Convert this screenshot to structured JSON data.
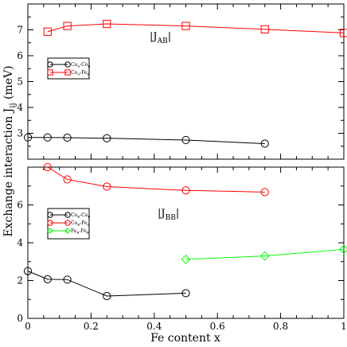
{
  "figure": {
    "ylabel": "Exchange interaction J",
    "ylabel_sub": "ij",
    "ylabel_unit": " (meV)",
    "xlabel": "Fe content x"
  },
  "chart_data": [
    {
      "type": "line",
      "panel": "top",
      "xlim": [
        0,
        1
      ],
      "ylim": [
        2,
        8
      ],
      "x_ticks": [],
      "y_ticks": [
        3,
        4,
        5,
        6,
        7
      ],
      "grid": false,
      "legend_position": "left",
      "annotation": {
        "main": "|J",
        "sub": "AB",
        "end": "|"
      },
      "series": [
        {
          "name": "Co_A-Co_B",
          "name_main1": "Co",
          "name_sub1": "A",
          "name_sep": "-",
          "name_main2": "Co",
          "name_sub2": "B",
          "color": "#000000",
          "marker": "circle",
          "x": [
            0,
            0.0625,
            0.125,
            0.25,
            0.5,
            0.75
          ],
          "y": [
            2.84,
            2.84,
            2.83,
            2.81,
            2.74,
            2.6
          ]
        },
        {
          "name": "Co_A-Fe_B",
          "name_main1": "Co",
          "name_sub1": "A",
          "name_sep": "-",
          "name_main2": "Fe",
          "name_sub2": "B",
          "color": "#ff0000",
          "marker": "square",
          "x": [
            0.0625,
            0.125,
            0.25,
            0.5,
            0.75,
            1.0
          ],
          "y": [
            6.93,
            7.15,
            7.23,
            7.15,
            7.02,
            6.88
          ]
        }
      ]
    },
    {
      "type": "line",
      "panel": "bottom",
      "xlim": [
        0,
        1
      ],
      "ylim": [
        0,
        8
      ],
      "x_ticks": [
        "0",
        "0.2",
        "0.4",
        "0.6",
        "0.8",
        "1"
      ],
      "x_tick_values": [
        0,
        0.2,
        0.4,
        0.6,
        0.8,
        1
      ],
      "y_ticks": [
        0,
        2,
        4,
        6
      ],
      "grid": false,
      "legend_position": "left",
      "annotation": {
        "main": "|J",
        "sub": "BB",
        "end": "|"
      },
      "series": [
        {
          "name": "Co_B-Co_B",
          "name_main1": "Co",
          "name_sub1": "B",
          "name_sep": "-",
          "name_main2": "Co",
          "name_sub2": "B",
          "color": "#000000",
          "marker": "circle",
          "x": [
            0,
            0.0625,
            0.125,
            0.25,
            0.5
          ],
          "y": [
            2.5,
            2.07,
            2.05,
            1.18,
            1.33
          ]
        },
        {
          "name": "Co_B-Fe_B",
          "name_main1": "Co",
          "name_sub1": "B",
          "name_sep": "-",
          "name_main2": "Fe",
          "name_sub2": "B",
          "color": "#ff0000",
          "marker": "circle",
          "x": [
            0.0625,
            0.125,
            0.25,
            0.5,
            0.75
          ],
          "y": [
            8.0,
            7.35,
            6.97,
            6.77,
            6.68
          ]
        },
        {
          "name": "Fe_B-Fe_B",
          "name_main1": "Fe",
          "name_sub1": "B",
          "name_sep": "-",
          "name_main2": "Fe",
          "name_sub2": "B",
          "color": "#00ff00",
          "marker": "diamond",
          "x": [
            0.5,
            0.75,
            1.0
          ],
          "y": [
            3.12,
            3.3,
            3.65
          ]
        }
      ]
    }
  ]
}
